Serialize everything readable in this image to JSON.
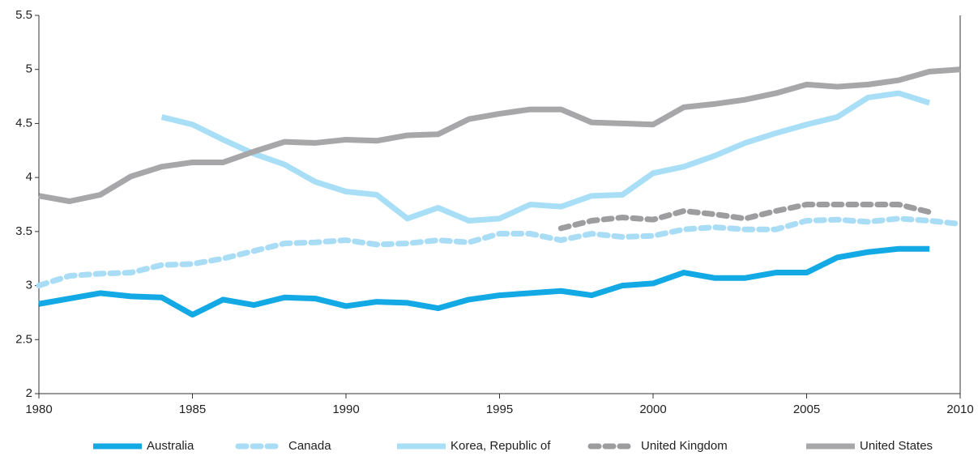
{
  "chart_data": {
    "type": "line",
    "x": [
      1980,
      1981,
      1982,
      1983,
      1984,
      1985,
      1986,
      1987,
      1988,
      1989,
      1990,
      1991,
      1992,
      1993,
      1994,
      1995,
      1996,
      1997,
      1998,
      1999,
      2000,
      2001,
      2002,
      2003,
      2004,
      2005,
      2006,
      2007,
      2008,
      2009,
      2010
    ],
    "series": [
      {
        "name": "Australia",
        "color": "#12a9e4",
        "dashed": false,
        "values": [
          2.83,
          2.88,
          2.93,
          2.9,
          2.89,
          2.73,
          2.87,
          2.82,
          2.89,
          2.88,
          2.81,
          2.85,
          2.84,
          2.79,
          2.87,
          2.91,
          2.93,
          2.95,
          2.91,
          3.0,
          3.02,
          3.12,
          3.07,
          3.07,
          3.12,
          3.12,
          3.26,
          3.31,
          3.34,
          3.34,
          null
        ]
      },
      {
        "name": "Canada",
        "color": "#a9dcf5",
        "dashed": true,
        "values": [
          3.0,
          3.09,
          3.11,
          3.12,
          3.19,
          3.2,
          3.25,
          3.32,
          3.39,
          3.4,
          3.42,
          3.38,
          3.39,
          3.42,
          3.4,
          3.48,
          3.48,
          3.42,
          3.48,
          3.45,
          3.46,
          3.52,
          3.54,
          3.52,
          3.52,
          3.6,
          3.61,
          3.59,
          3.62,
          3.6,
          3.57
        ]
      },
      {
        "name": "Korea, Republic of",
        "color": "#a9dff6",
        "dashed": false,
        "values": [
          null,
          null,
          null,
          null,
          4.56,
          4.49,
          4.35,
          4.22,
          4.12,
          3.96,
          3.87,
          3.84,
          3.62,
          3.72,
          3.6,
          3.62,
          3.75,
          3.73,
          3.83,
          3.84,
          4.04,
          4.1,
          4.2,
          4.32,
          4.41,
          4.49,
          4.56,
          4.74,
          4.78,
          4.69,
          null
        ]
      },
      {
        "name": "United Kingdom",
        "color": "#9d9d9f",
        "dashed": true,
        "values": [
          null,
          null,
          null,
          null,
          null,
          null,
          null,
          null,
          null,
          null,
          null,
          null,
          null,
          null,
          null,
          null,
          null,
          3.53,
          3.6,
          3.63,
          3.61,
          3.69,
          3.66,
          3.62,
          3.69,
          3.75,
          3.75,
          3.75,
          3.75,
          3.68,
          null
        ]
      },
      {
        "name": "United States",
        "color": "#a7a7a9",
        "dashed": false,
        "values": [
          3.83,
          3.78,
          3.84,
          4.01,
          4.1,
          4.14,
          4.14,
          4.24,
          4.33,
          4.32,
          4.35,
          4.34,
          4.39,
          4.4,
          4.54,
          4.59,
          4.63,
          4.63,
          4.51,
          4.5,
          4.49,
          4.65,
          4.68,
          4.72,
          4.78,
          4.86,
          4.84,
          4.86,
          4.9,
          4.98,
          5.0
        ]
      }
    ],
    "xlim": [
      1980,
      2010
    ],
    "xticks": [
      1980,
      1985,
      1990,
      1995,
      2000,
      2005,
      2010
    ],
    "ylim": [
      2,
      5.5
    ],
    "yticks": [
      2,
      2.5,
      3,
      3.5,
      4,
      4.5,
      5,
      5.5
    ],
    "legend": "bottom"
  }
}
